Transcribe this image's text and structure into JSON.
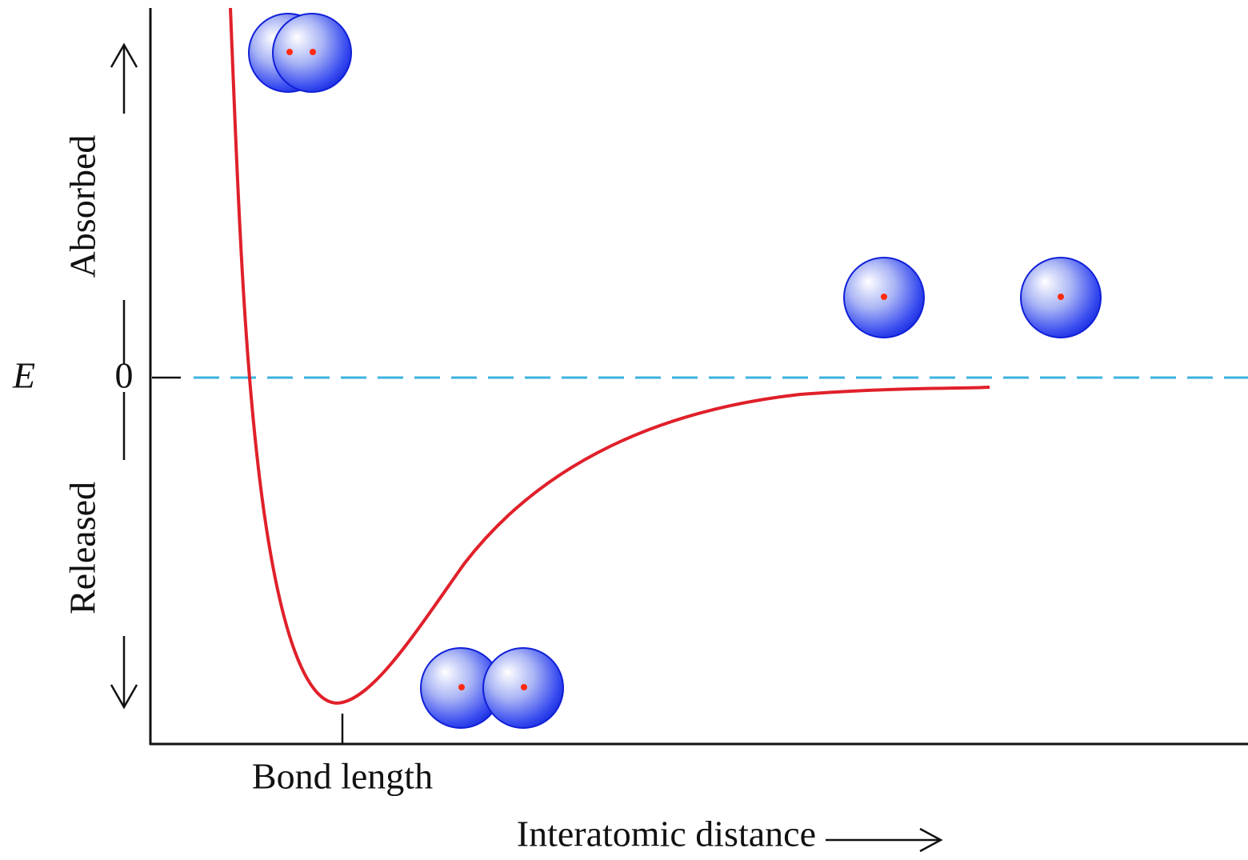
{
  "labels": {
    "energy_symbol": "E",
    "zero": "0",
    "absorbed": "Absorbed",
    "released": "Released",
    "bond_length": "Bond length",
    "x_axis": "Interatomic distance"
  }
}
